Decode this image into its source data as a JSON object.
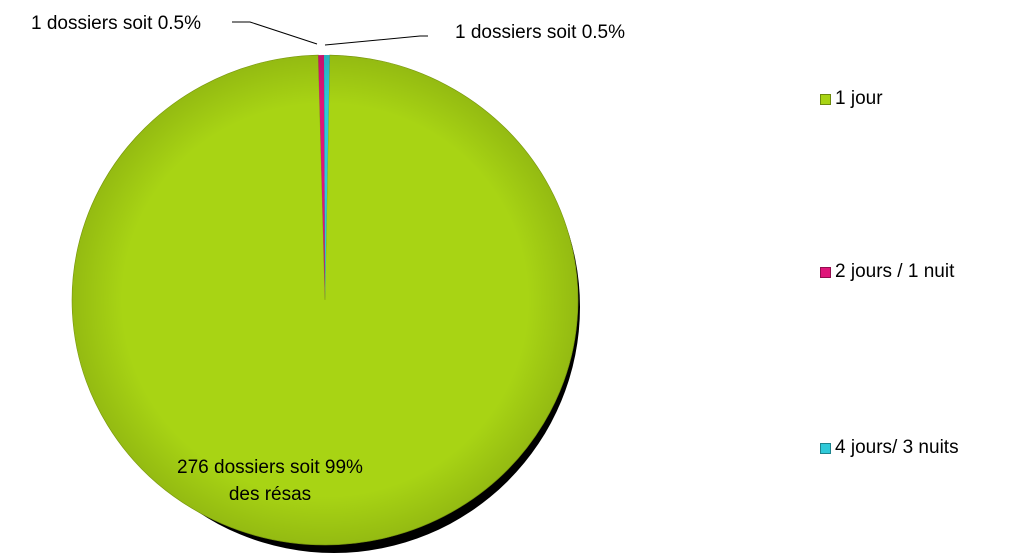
{
  "chart_data": {
    "type": "pie",
    "categories": [
      "1 jour",
      "2 jours / 1 nuit",
      "4 jours/ 3 nuits"
    ],
    "values": [
      276,
      1,
      1
    ],
    "colors": [
      "#a8d414",
      "#e0157a",
      "#2fc9d8"
    ],
    "data_labels": [
      [
        "276 dossiers soit 99%",
        "des résas"
      ],
      [
        "1 dossiers soit 0.5%"
      ],
      [
        "1 dossiers soit 0.5%"
      ]
    ],
    "legend": {
      "position": "right",
      "entries": [
        "1 jour",
        "2 jours / 1 nuit",
        "4 jours/ 3 nuits"
      ]
    }
  }
}
